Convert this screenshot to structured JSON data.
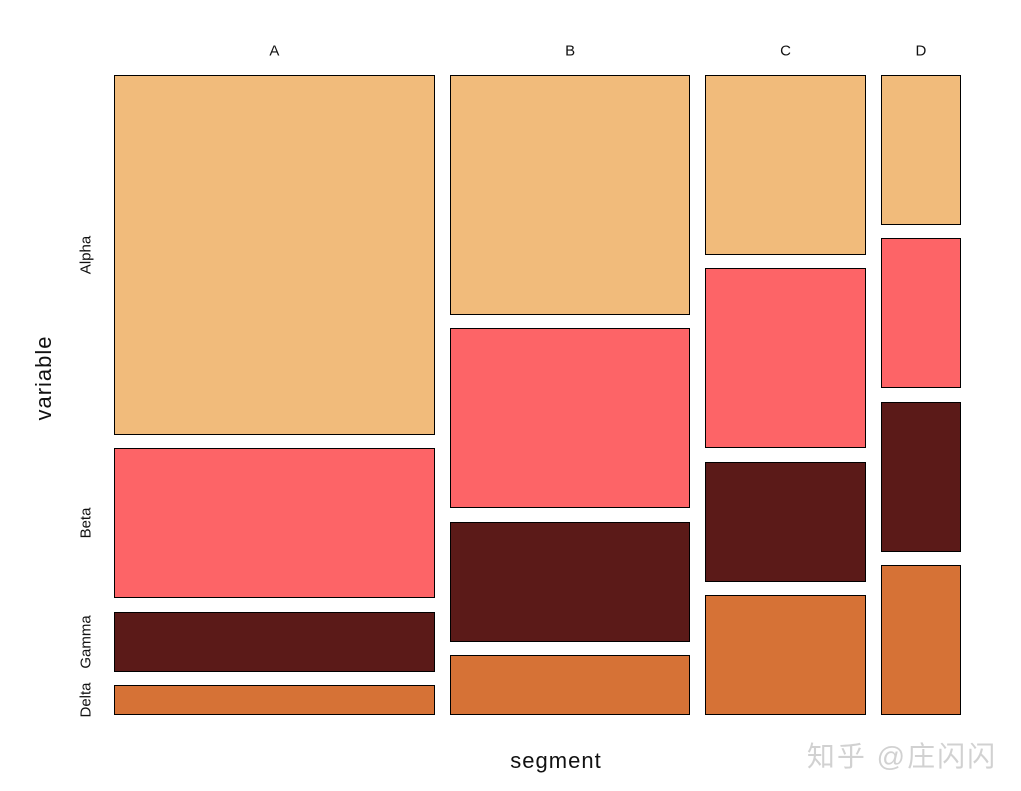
{
  "axes": {
    "x_title": "segment",
    "y_title": "variable",
    "col_labels": [
      "A",
      "B",
      "C",
      "D"
    ],
    "row_labels": [
      "Alpha",
      "Beta",
      "Gamma",
      "Delta"
    ]
  },
  "watermark": {
    "text": "知乎 @庄闪闪"
  },
  "colors": {
    "background": "#FFFFFF",
    "cell_border": "#000000",
    "row_colors": [
      "#F1BB7B",
      "#FD6467",
      "#5B1A18",
      "#D67236"
    ]
  },
  "chart_data": {
    "type": "mosaic",
    "title": "",
    "xlabel": "segment",
    "ylabel": "variable",
    "columns": [
      "A",
      "B",
      "C",
      "D"
    ],
    "rows": [
      "Alpha",
      "Beta",
      "Gamma",
      "Delta"
    ],
    "column_width_shares": [
      0.4,
      0.3,
      0.2,
      0.1
    ],
    "row_proportions_by_column": {
      "A": [
        0.6,
        0.25,
        0.1,
        0.05
      ],
      "B": [
        0.4,
        0.3,
        0.2,
        0.1
      ],
      "C": [
        0.3,
        0.3,
        0.2,
        0.2
      ],
      "D": [
        0.25,
        0.25,
        0.25,
        0.25
      ]
    },
    "row_colors": {
      "Alpha": "#F1BB7B",
      "Beta": "#FD6467",
      "Gamma": "#5B1A18",
      "Delta": "#D67236"
    },
    "legend": "none",
    "grid": false
  }
}
